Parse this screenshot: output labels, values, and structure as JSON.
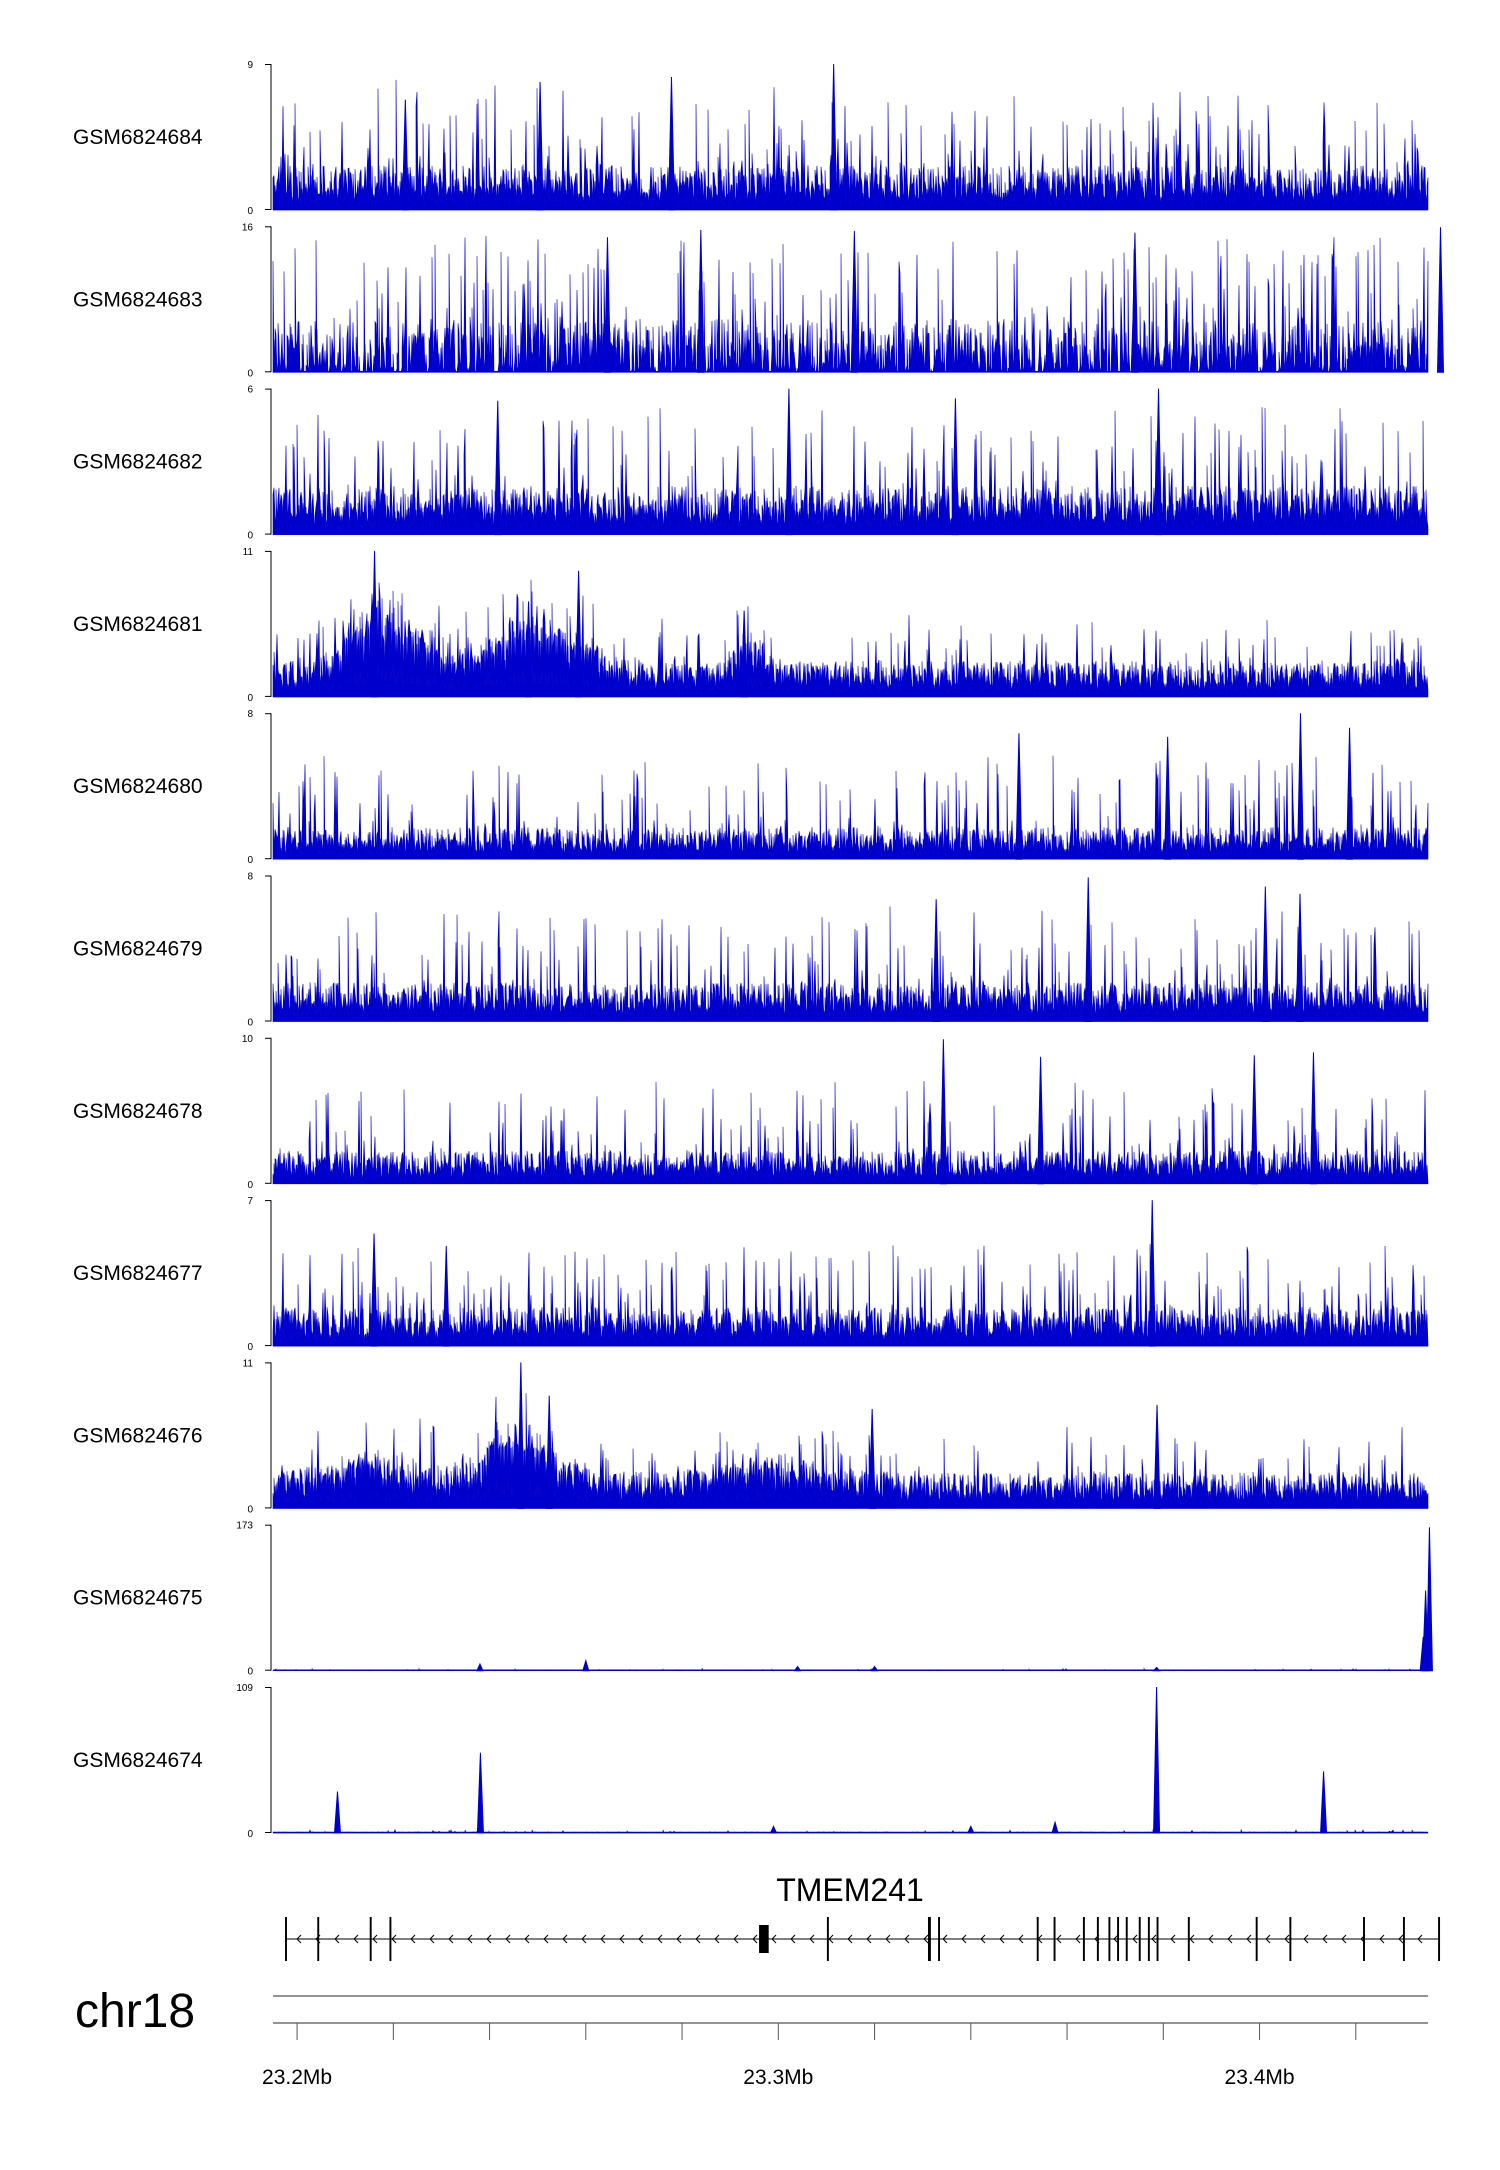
{
  "chart_data": {
    "type": "area",
    "chromosome": "chr18",
    "region_mb": [
      23.195,
      23.435
    ],
    "x_ticks": [
      {
        "pos": 23.2,
        "label": "23.2Mb"
      },
      {
        "pos": 23.3,
        "label": "23.3Mb"
      },
      {
        "pos": 23.4,
        "label": "23.4Mb"
      }
    ],
    "x_minor_ticks": [
      23.2,
      23.22,
      23.24,
      23.26,
      23.28,
      23.3,
      23.32,
      23.34,
      23.36,
      23.38,
      23.4,
      23.42
    ],
    "series_color": "#0000cc",
    "tracks": [
      {
        "name": "GSM6824684",
        "ymin": 0,
        "ymax": 9,
        "ymin_label": "0",
        "ymax_label": "9",
        "kind": "noisy",
        "base": 2.2,
        "spike": 5.5,
        "spike_rate": 0.18,
        "peaks": [
          {
            "x": 23.2778,
            "y": 8.2
          },
          {
            "x": 23.3115,
            "y": 9.0
          },
          {
            "x": 23.2505,
            "y": 7.9
          },
          {
            "x": 23.2225,
            "y": 6.8
          }
        ]
      },
      {
        "name": "GSM6824683",
        "ymin": 0,
        "ymax": 16,
        "ymin_label": "0",
        "ymax_label": "16",
        "kind": "sparse",
        "base": 4.5,
        "spike": 10.5,
        "spike_rate": 0.14,
        "peaks": [
          {
            "x": 23.3158,
            "y": 15.5
          },
          {
            "x": 23.4376,
            "y": 15.9
          },
          {
            "x": 23.3741,
            "y": 15.3
          },
          {
            "x": 23.2839,
            "y": 15.6
          },
          {
            "x": 23.2645,
            "y": 14.8
          }
        ]
      },
      {
        "name": "GSM6824682",
        "ymin": 0,
        "ymax": 6,
        "ymin_label": "0",
        "ymax_label": "6",
        "kind": "noisy",
        "base": 1.6,
        "spike": 3.4,
        "spike_rate": 0.16,
        "peaks": [
          {
            "x": 23.3022,
            "y": 6.0
          },
          {
            "x": 23.379,
            "y": 6.0
          },
          {
            "x": 23.2417,
            "y": 5.5
          },
          {
            "x": 23.3368,
            "y": 5.6
          }
        ]
      },
      {
        "name": "GSM6824681",
        "ymin": 0,
        "ymax": 11,
        "ymin_label": "0",
        "ymax_label": "11",
        "kind": "dense",
        "base": 2.2,
        "spike": 3.5,
        "spike_rate": 0.12,
        "peaks": [
          {
            "x": 23.2161,
            "y": 11.0
          },
          {
            "x": 23.2585,
            "y": 9.5
          },
          {
            "x": 23.2481,
            "y": 7.2
          },
          {
            "x": 23.2929,
            "y": 6.5
          }
        ],
        "bumps": [
          {
            "x": 23.217,
            "w": 0.008,
            "h": 3.5
          },
          {
            "x": 23.25,
            "w": 0.012,
            "h": 3.6
          },
          {
            "x": 23.294,
            "w": 0.004,
            "h": 2.0
          },
          {
            "x": 23.225,
            "w": 0.01,
            "h": 1.4
          }
        ]
      },
      {
        "name": "GSM6824680",
        "ymin": 0,
        "ymax": 8,
        "ymin_label": "0",
        "ymax_label": "8",
        "kind": "noisy",
        "base": 1.4,
        "spike": 4.2,
        "spike_rate": 0.15,
        "peaks": [
          {
            "x": 23.4085,
            "y": 8.0
          },
          {
            "x": 23.4187,
            "y": 7.2
          },
          {
            "x": 23.35,
            "y": 6.9
          },
          {
            "x": 23.3809,
            "y": 6.7
          }
        ]
      },
      {
        "name": "GSM6824679",
        "ymin": 0,
        "ymax": 8,
        "ymin_label": "0",
        "ymax_label": "8",
        "kind": "noisy",
        "base": 1.7,
        "spike": 4.4,
        "spike_rate": 0.16,
        "peaks": [
          {
            "x": 23.3644,
            "y": 7.9
          },
          {
            "x": 23.4012,
            "y": 7.4
          },
          {
            "x": 23.4084,
            "y": 7.0
          },
          {
            "x": 23.3328,
            "y": 6.7
          }
        ]
      },
      {
        "name": "GSM6824678",
        "ymin": 0,
        "ymax": 10,
        "ymin_label": "0",
        "ymax_label": "10",
        "kind": "noisy",
        "base": 1.8,
        "spike": 5.0,
        "spike_rate": 0.15,
        "peaks": [
          {
            "x": 23.3343,
            "y": 9.9
          },
          {
            "x": 23.4112,
            "y": 9.0
          },
          {
            "x": 23.3989,
            "y": 8.8
          },
          {
            "x": 23.3545,
            "y": 8.7
          }
        ]
      },
      {
        "name": "GSM6824677",
        "ymin": 0,
        "ymax": 7,
        "ymin_label": "0",
        "ymax_label": "7",
        "kind": "noisy",
        "base": 1.5,
        "spike": 3.2,
        "spike_rate": 0.18,
        "peaks": [
          {
            "x": 23.3777,
            "y": 7.0
          },
          {
            "x": 23.216,
            "y": 5.4
          },
          {
            "x": 23.231,
            "y": 4.8
          }
        ]
      },
      {
        "name": "GSM6824676",
        "ymin": 0,
        "ymax": 11,
        "ymin_label": "0",
        "ymax_label": "11",
        "kind": "dense",
        "base": 2.2,
        "spike": 3.8,
        "spike_rate": 0.12,
        "peaks": [
          {
            "x": 23.2465,
            "y": 11.0
          },
          {
            "x": 23.2524,
            "y": 8.5
          },
          {
            "x": 23.3787,
            "y": 7.8
          },
          {
            "x": 23.3195,
            "y": 7.5
          }
        ],
        "bumps": [
          {
            "x": 23.246,
            "w": 0.01,
            "h": 3.2
          },
          {
            "x": 23.215,
            "w": 0.01,
            "h": 1.6
          },
          {
            "x": 23.3,
            "w": 0.012,
            "h": 1.2
          }
        ]
      },
      {
        "name": "GSM6824675",
        "ymin": 0,
        "ymax": 173,
        "ymin_label": "0",
        "ymax_label": "173",
        "kind": "flat",
        "base": 1.0,
        "spike": 2.0,
        "spike_rate": 0.05,
        "peaks": [
          {
            "x": 23.4353,
            "y": 170.0
          },
          {
            "x": 23.4345,
            "y": 95.0
          },
          {
            "x": 23.434,
            "y": 40.0
          },
          {
            "x": 23.26,
            "y": 12.0
          },
          {
            "x": 23.238,
            "y": 8.0
          },
          {
            "x": 23.304,
            "y": 5.0
          },
          {
            "x": 23.32,
            "y": 5.0
          },
          {
            "x": 23.3786,
            "y": 4.0
          }
        ]
      },
      {
        "name": "GSM6824674",
        "ymin": 0,
        "ymax": 109,
        "ymin_label": "0",
        "ymax_label": "109",
        "kind": "flat",
        "base": 0.8,
        "spike": 2.2,
        "spike_rate": 0.05,
        "peaks": [
          {
            "x": 23.3786,
            "y": 109.0
          },
          {
            "x": 23.2381,
            "y": 60.0
          },
          {
            "x": 23.4133,
            "y": 46.0
          },
          {
            "x": 23.2084,
            "y": 31.0
          },
          {
            "x": 23.3575,
            "y": 8.0
          },
          {
            "x": 23.299,
            "y": 5.0
          },
          {
            "x": 23.34,
            "y": 5.0
          }
        ]
      }
    ],
    "gene": {
      "name": "TMEM241",
      "strand": "-",
      "start_mb": 23.1975,
      "end_mb": 23.4375,
      "exons": [
        {
          "s": 23.1975,
          "e": 23.1979
        },
        {
          "s": 23.2042,
          "e": 23.2046
        },
        {
          "s": 23.2151,
          "e": 23.2155
        },
        {
          "s": 23.2192,
          "e": 23.2196
        },
        {
          "s": 23.296,
          "e": 23.298
        },
        {
          "s": 23.3101,
          "e": 23.3105
        },
        {
          "s": 23.3311,
          "e": 23.3317
        },
        {
          "s": 23.3332,
          "e": 23.3336
        },
        {
          "s": 23.3537,
          "e": 23.3541
        },
        {
          "s": 23.3572,
          "e": 23.3576
        },
        {
          "s": 23.3633,
          "e": 23.3637
        },
        {
          "s": 23.3662,
          "e": 23.3666
        },
        {
          "s": 23.3686,
          "e": 23.369
        },
        {
          "s": 23.3704,
          "e": 23.3708
        },
        {
          "s": 23.3722,
          "e": 23.3726
        },
        {
          "s": 23.3749,
          "e": 23.3753
        },
        {
          "s": 23.3768,
          "e": 23.3772
        },
        {
          "s": 23.3786,
          "e": 23.379
        },
        {
          "s": 23.3851,
          "e": 23.3855
        },
        {
          "s": 23.3992,
          "e": 23.3996
        },
        {
          "s": 23.4062,
          "e": 23.4066
        },
        {
          "s": 23.4215,
          "e": 23.4219
        },
        {
          "s": 23.4298,
          "e": 23.4302
        },
        {
          "s": 23.4371,
          "e": 23.4375
        }
      ]
    }
  }
}
